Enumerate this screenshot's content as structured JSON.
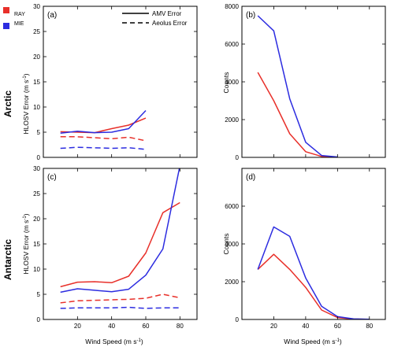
{
  "figure": {
    "legend_color": [
      {
        "label": "RAY",
        "color": "#e8302a"
      },
      {
        "label": "MIE",
        "color": "#2c2ce0"
      }
    ],
    "legend_style": [
      {
        "label": "AMV Error",
        "dash": "solid"
      },
      {
        "label": "Aeolus Error",
        "dash": "dashed"
      }
    ],
    "row_labels": [
      "Arctic",
      "Antarctic"
    ],
    "xlabel_main": "Wind Speed (m s",
    "xlabel_sup": "-1",
    "xlabel_end": ")",
    "ylabel_error_main": "HLOSV Error (m s",
    "ylabel_error_sup": "-1",
    "ylabel_error_end": ")",
    "ylabel_counts": "Counts"
  },
  "chart_data": [
    {
      "id": "a",
      "panel_label": "(a)",
      "type": "line",
      "xlim": [
        0,
        90
      ],
      "ylim": [
        0,
        30
      ],
      "xticks": [
        20,
        40,
        60,
        80
      ],
      "yticks": [
        0,
        5,
        10,
        15,
        20,
        25,
        30
      ],
      "xtick_labels": [],
      "ytick_labels": [
        "0",
        "5",
        "10",
        "15",
        "20",
        "25",
        "30"
      ],
      "series": [
        {
          "name": "RAY",
          "kind": "AMV Error",
          "color": "#e8302a",
          "dash": "solid",
          "x": [
            10,
            20,
            30,
            40,
            50,
            60
          ],
          "y": [
            5.1,
            5.0,
            4.9,
            5.7,
            6.4,
            7.8
          ]
        },
        {
          "name": "MIE",
          "kind": "AMV Error",
          "color": "#2c2ce0",
          "dash": "solid",
          "x": [
            10,
            20,
            30,
            40,
            50,
            60
          ],
          "y": [
            4.8,
            5.2,
            4.9,
            5.0,
            5.7,
            9.3
          ]
        },
        {
          "name": "RAY",
          "kind": "Aeolus Error",
          "color": "#e8302a",
          "dash": "dashed",
          "x": [
            10,
            20,
            30,
            40,
            50,
            60
          ],
          "y": [
            4.1,
            4.1,
            3.9,
            3.7,
            4.0,
            3.3
          ]
        },
        {
          "name": "MIE",
          "kind": "Aeolus Error",
          "color": "#2c2ce0",
          "dash": "dashed",
          "x": [
            10,
            20,
            30,
            40,
            50,
            60
          ],
          "y": [
            1.8,
            2.0,
            1.9,
            1.8,
            1.9,
            1.6
          ]
        }
      ]
    },
    {
      "id": "b",
      "panel_label": "(b)",
      "type": "line",
      "xlim": [
        0,
        90
      ],
      "ylim": [
        0,
        8000
      ],
      "xticks": [
        20,
        40,
        60,
        80
      ],
      "yticks": [
        0,
        2000,
        4000,
        6000,
        8000
      ],
      "xtick_labels": [],
      "ytick_labels": [
        "0",
        "2000",
        "4000",
        "6000",
        "8000"
      ],
      "series": [
        {
          "name": "RAY",
          "color": "#e8302a",
          "dash": "solid",
          "x": [
            10,
            20,
            30,
            40,
            50,
            60
          ],
          "y": [
            4500,
            3000,
            1250,
            300,
            50,
            10
          ]
        },
        {
          "name": "MIE",
          "color": "#2c2ce0",
          "dash": "solid",
          "x": [
            10,
            20,
            30,
            40,
            50,
            60
          ],
          "y": [
            7500,
            6700,
            3100,
            800,
            100,
            20
          ]
        }
      ]
    },
    {
      "id": "c",
      "panel_label": "(c)",
      "type": "line",
      "xlim": [
        0,
        90
      ],
      "ylim": [
        0,
        30
      ],
      "xticks": [
        20,
        40,
        60,
        80
      ],
      "yticks": [
        0,
        5,
        10,
        15,
        20,
        25,
        30
      ],
      "xtick_labels": [
        "20",
        "40",
        "60",
        "80"
      ],
      "ytick_labels": [
        "0",
        "5",
        "10",
        "15",
        "20",
        "25",
        "30"
      ],
      "series": [
        {
          "name": "RAY",
          "kind": "AMV Error",
          "color": "#e8302a",
          "dash": "solid",
          "x": [
            10,
            20,
            30,
            40,
            50,
            60,
            70,
            80
          ],
          "y": [
            6.5,
            7.4,
            7.5,
            7.3,
            8.6,
            13.2,
            21.2,
            23.2
          ]
        },
        {
          "name": "MIE",
          "kind": "AMV Error",
          "color": "#2c2ce0",
          "dash": "solid",
          "x": [
            10,
            20,
            30,
            40,
            50,
            60,
            70,
            80
          ],
          "y": [
            5.4,
            6.1,
            5.8,
            5.5,
            6.0,
            8.8,
            14.0,
            30.5
          ]
        },
        {
          "name": "RAY",
          "kind": "Aeolus Error",
          "color": "#e8302a",
          "dash": "dashed",
          "x": [
            10,
            20,
            30,
            40,
            50,
            60,
            70,
            80
          ],
          "y": [
            3.3,
            3.7,
            3.8,
            3.9,
            4.0,
            4.2,
            5.0,
            4.3
          ]
        },
        {
          "name": "MIE",
          "kind": "Aeolus Error",
          "color": "#2c2ce0",
          "dash": "dashed",
          "x": [
            10,
            20,
            30,
            40,
            50,
            60,
            70,
            80
          ],
          "y": [
            2.2,
            2.3,
            2.3,
            2.3,
            2.4,
            2.2,
            2.3,
            2.3
          ]
        }
      ]
    },
    {
      "id": "d",
      "panel_label": "(d)",
      "type": "line",
      "xlim": [
        0,
        90
      ],
      "ylim": [
        0,
        8000
      ],
      "xticks": [
        20,
        40,
        60,
        80
      ],
      "yticks": [
        0,
        2000,
        4000,
        6000,
        8000
      ],
      "xtick_labels": [
        "20",
        "40",
        "60",
        "80"
      ],
      "ytick_labels": [
        "0",
        "2000",
        "4000",
        "6000"
      ],
      "series": [
        {
          "name": "RAY",
          "color": "#e8302a",
          "dash": "solid",
          "x": [
            10,
            20,
            30,
            40,
            50,
            60,
            70,
            80
          ],
          "y": [
            2650,
            3450,
            2650,
            1700,
            500,
            100,
            20,
            5
          ]
        },
        {
          "name": "MIE",
          "color": "#2c2ce0",
          "dash": "solid",
          "x": [
            10,
            20,
            30,
            40,
            50,
            60,
            70,
            80
          ],
          "y": [
            2650,
            4900,
            4400,
            2200,
            700,
            150,
            30,
            10
          ]
        }
      ]
    }
  ]
}
